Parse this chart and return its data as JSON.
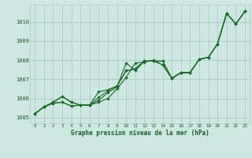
{
  "title": "Graphe pression niveau de la mer (hPa)",
  "bg_color": "#cce8e0",
  "grid_color": "#aacccc",
  "line_color": "#1a6b2a",
  "text_color": "#1a5c2a",
  "xlim": [
    -0.5,
    23.5
  ],
  "ylim": [
    1004.7,
    1010.9
  ],
  "yticks": [
    1005,
    1006,
    1007,
    1008,
    1009,
    1010
  ],
  "xticks": [
    0,
    1,
    2,
    3,
    4,
    5,
    6,
    7,
    8,
    9,
    10,
    11,
    12,
    13,
    14,
    15,
    16,
    17,
    18,
    19,
    20,
    21,
    22,
    23
  ],
  "series": [
    [
      1005.2,
      1005.55,
      1005.8,
      1006.1,
      1005.8,
      1005.65,
      1005.65,
      1005.8,
      1006.0,
      1006.5,
      1007.1,
      1007.85,
      1007.9,
      1008.0,
      1007.75,
      1007.05,
      1007.35,
      1007.35,
      1008.05,
      1008.15,
      1008.85,
      1010.45,
      1009.9,
      1010.55
    ],
    [
      1005.2,
      1005.55,
      1005.8,
      1006.1,
      1005.8,
      1005.65,
      1005.65,
      1005.9,
      1006.3,
      1006.6,
      1007.85,
      1007.45,
      1007.95,
      1007.95,
      1007.75,
      1007.05,
      1007.35,
      1007.35,
      1008.05,
      1008.15,
      1008.85,
      1010.45,
      1009.9,
      1010.55
    ],
    [
      1005.2,
      1005.55,
      1005.75,
      1005.8,
      1005.6,
      1005.65,
      1005.65,
      1006.05,
      1006.4,
      1006.65,
      1007.45,
      1007.55,
      1007.95,
      1007.95,
      1007.95,
      1007.05,
      1007.35,
      1007.35,
      1008.05,
      1008.15,
      1008.85,
      1010.45,
      1009.9,
      1010.55
    ],
    [
      1005.2,
      1005.55,
      1005.75,
      1005.8,
      1005.6,
      1005.65,
      1005.65,
      1006.35,
      1006.45,
      1006.65,
      1007.45,
      1007.55,
      1007.95,
      1007.95,
      1007.95,
      1007.05,
      1007.35,
      1007.35,
      1008.05,
      1008.15,
      1008.85,
      1010.45,
      1009.9,
      1010.55
    ]
  ]
}
